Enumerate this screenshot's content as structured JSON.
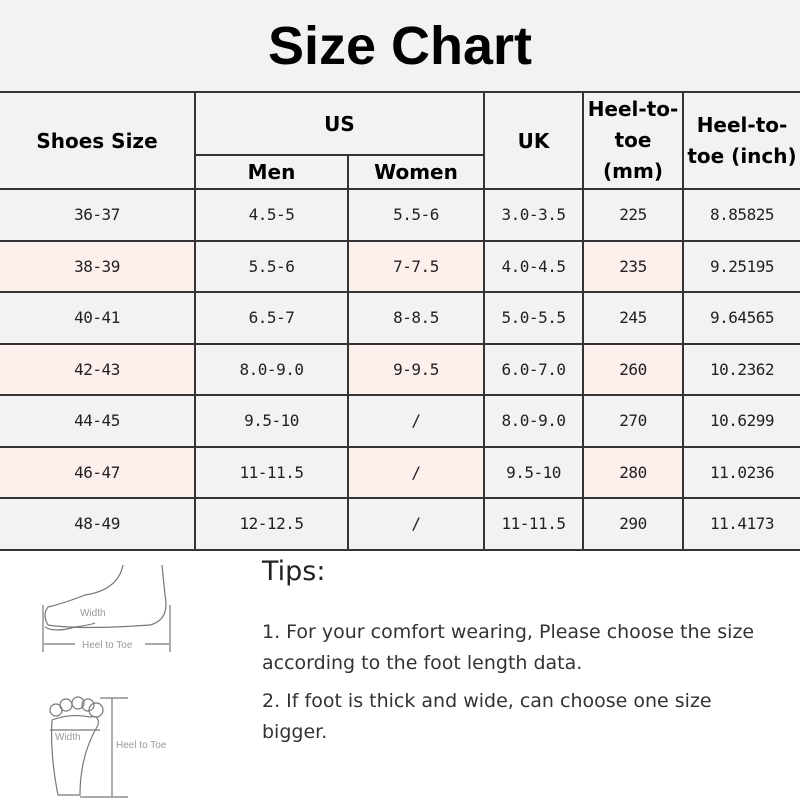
{
  "title": "Size Chart",
  "headers": {
    "shoes_size": "Shoes Size",
    "us": "US",
    "men": "Men",
    "women": "Women",
    "uk": "UK",
    "heel_mm": "Heel-to-toe (mm)",
    "heel_inch": "Heel-to-toe (inch)"
  },
  "rows": [
    [
      "36-37",
      "4.5-5",
      "5.5-6",
      "3.0-3.5",
      "225",
      "8.85825"
    ],
    [
      "38-39",
      "5.5-6",
      "7-7.5",
      "4.0-4.5",
      "235",
      "9.25195"
    ],
    [
      "40-41",
      "6.5-7",
      "8-8.5",
      "5.0-5.5",
      "245",
      "9.64565"
    ],
    [
      "42-43",
      "8.0-9.0",
      "9-9.5",
      "6.0-7.0",
      "260",
      "10.2362"
    ],
    [
      "44-45",
      "9.5-10",
      "/",
      "8.0-9.0",
      "270",
      "10.6299"
    ],
    [
      "46-47",
      "11-11.5",
      "/",
      "9.5-10",
      "280",
      "11.0236"
    ],
    [
      "48-49",
      "12-12.5",
      "/",
      "11-11.5",
      "290",
      "11.4173"
    ]
  ],
  "diagram": {
    "width": "Width",
    "heel_to_toe": "Heel to Toe"
  },
  "tips": {
    "title": "Tips:",
    "items": [
      "1. For your comfort wearing, Please choose the size according to the foot length data.",
      "2. If foot is thick and wide, can choose one size bigger."
    ]
  },
  "colors": {
    "cell_gray": "#f2f2f2",
    "cell_pink": "#fdf0ec"
  }
}
